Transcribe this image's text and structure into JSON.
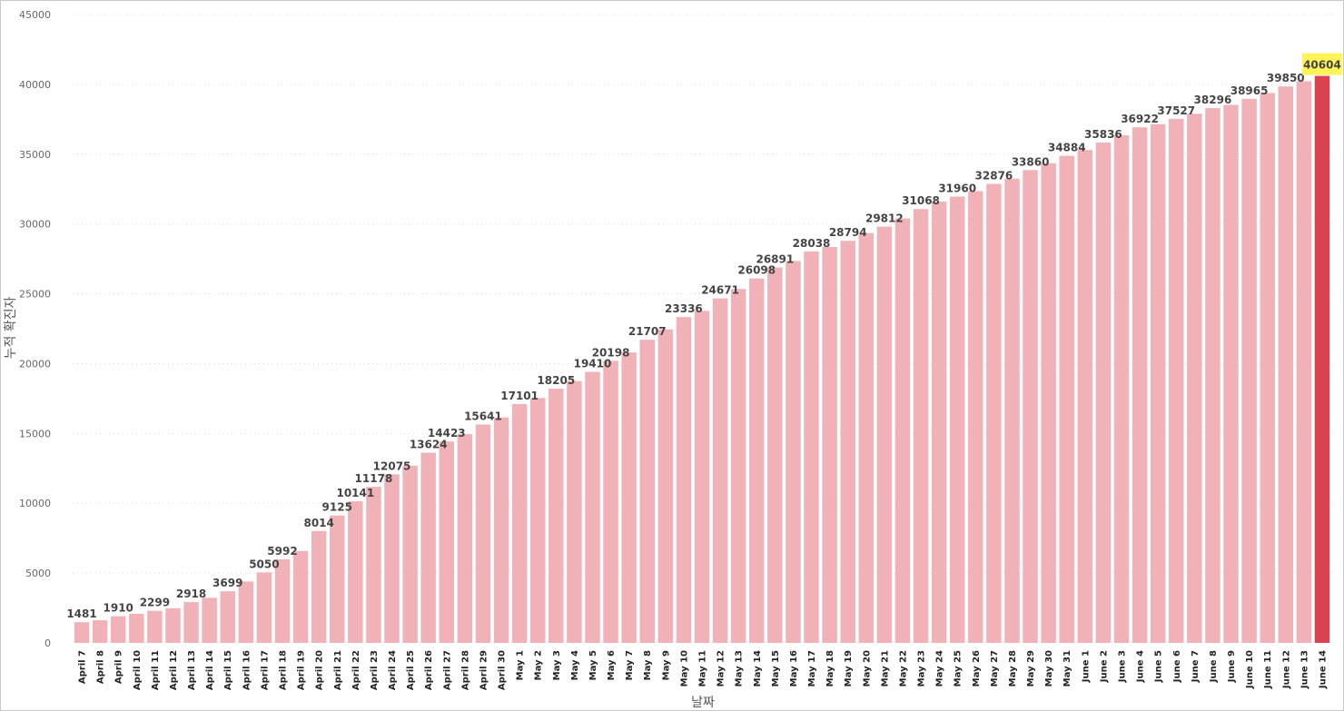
{
  "chart_data": {
    "type": "bar",
    "xlabel": "날짜",
    "ylabel": "누적 확진자",
    "ylim": [
      0,
      45000
    ],
    "yticks": [
      0,
      5000,
      10000,
      15000,
      20000,
      25000,
      30000,
      35000,
      40000,
      45000
    ],
    "grid": true,
    "categories": [
      "April 7",
      "April 8",
      "April 9",
      "April 10",
      "April 11",
      "April 12",
      "April 13",
      "April 14",
      "April 15",
      "April 16",
      "April 17",
      "April 18",
      "April 19",
      "April 20",
      "April 21",
      "April 22",
      "April 23",
      "April 24",
      "April 25",
      "April 26",
      "April 27",
      "April 28",
      "April 29",
      "April 30",
      "May 1",
      "May 2",
      "May 3",
      "May 4",
      "May 5",
      "May 6",
      "May 7",
      "May 8",
      "May 9",
      "May 10",
      "May 11",
      "May 12",
      "May 13",
      "May 14",
      "May 15",
      "May 16",
      "May 17",
      "May 18",
      "May 19",
      "May 20",
      "May 21",
      "May 22",
      "May 23",
      "May 24",
      "May 25",
      "May 26",
      "May 27",
      "May 28",
      "May 29",
      "May 30",
      "May 31",
      "June 1",
      "June 2",
      "June 3",
      "June 4",
      "June 5",
      "June 6",
      "June 7",
      "June 8",
      "June 9",
      "June 10",
      "June 11",
      "June 12",
      "June 13",
      "June 14"
    ],
    "values": [
      1481,
      1620,
      1910,
      2090,
      2299,
      2480,
      2918,
      3230,
      3699,
      4400,
      5050,
      5992,
      6580,
      8014,
      9125,
      10141,
      11178,
      12075,
      12690,
      13624,
      14423,
      14950,
      15641,
      16150,
      17101,
      17540,
      18205,
      18750,
      19410,
      20198,
      20800,
      21707,
      22450,
      23336,
      23780,
      24671,
      25340,
      26098,
      26891,
      27350,
      28038,
      28350,
      28794,
      29350,
      29812,
      30400,
      31068,
      31600,
      31960,
      32350,
      32876,
      33250,
      33860,
      34350,
      34884,
      35300,
      35836,
      36350,
      36922,
      37150,
      37527,
      37900,
      38296,
      38530,
      38965,
      39380,
      39850,
      40220,
      40604
    ],
    "data_labels": [
      {
        "index": 0,
        "text": "1481"
      },
      {
        "index": 2,
        "text": "1910"
      },
      {
        "index": 4,
        "text": "2299"
      },
      {
        "index": 6,
        "text": "2918"
      },
      {
        "index": 8,
        "text": "3699"
      },
      {
        "index": 10,
        "text": "5050"
      },
      {
        "index": 11,
        "text": "5992"
      },
      {
        "index": 13,
        "text": "8014"
      },
      {
        "index": 14,
        "text": "9125"
      },
      {
        "index": 15,
        "text": "10141"
      },
      {
        "index": 16,
        "text": "11178"
      },
      {
        "index": 17,
        "text": "12075"
      },
      {
        "index": 19,
        "text": "13624"
      },
      {
        "index": 20,
        "text": "14423"
      },
      {
        "index": 22,
        "text": "15641"
      },
      {
        "index": 24,
        "text": "17101"
      },
      {
        "index": 26,
        "text": "18205"
      },
      {
        "index": 28,
        "text": "19410"
      },
      {
        "index": 29,
        "text": "20198"
      },
      {
        "index": 31,
        "text": "21707"
      },
      {
        "index": 33,
        "text": "23336"
      },
      {
        "index": 35,
        "text": "24671"
      },
      {
        "index": 37,
        "text": "26098"
      },
      {
        "index": 38,
        "text": "26891"
      },
      {
        "index": 40,
        "text": "28038"
      },
      {
        "index": 42,
        "text": "28794"
      },
      {
        "index": 44,
        "text": "29812"
      },
      {
        "index": 46,
        "text": "31068"
      },
      {
        "index": 48,
        "text": "31960"
      },
      {
        "index": 50,
        "text": "32876"
      },
      {
        "index": 52,
        "text": "33860"
      },
      {
        "index": 54,
        "text": "34884"
      },
      {
        "index": 56,
        "text": "35836"
      },
      {
        "index": 58,
        "text": "36922"
      },
      {
        "index": 60,
        "text": "37527"
      },
      {
        "index": 62,
        "text": "38296"
      },
      {
        "index": 64,
        "text": "38965"
      },
      {
        "index": 66,
        "text": "39850"
      },
      {
        "index": 68,
        "text": "40604"
      }
    ],
    "highlight_index": 68,
    "colors": {
      "bar": "#f0b2b6",
      "highlight_bar": "#d9434f",
      "highlight_label_bg": "#fff35a",
      "gridline": "#d9d9d9"
    }
  }
}
